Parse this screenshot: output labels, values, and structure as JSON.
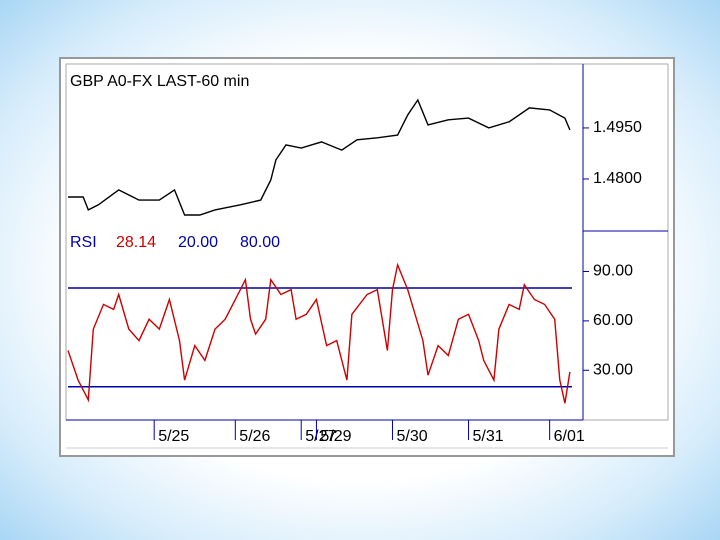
{
  "chart_data": [
    {
      "type": "line",
      "title": "GBP A0-FX LAST-60 min",
      "x": [
        0,
        3,
        4,
        6,
        10,
        14,
        18,
        21,
        23,
        26,
        29,
        34,
        38,
        40,
        41,
        43,
        46,
        50,
        54,
        57,
        61,
        65,
        67,
        69,
        71,
        75,
        79,
        83,
        87,
        91,
        95,
        98,
        99
      ],
      "series": [
        {
          "color": "#000000",
          "values": [
            1.4747,
            1.4747,
            1.4709,
            1.4724,
            1.4768,
            1.4738,
            1.4738,
            1.4768,
            1.4694,
            1.4694,
            1.4709,
            1.4724,
            1.4738,
            1.4797,
            1.4856,
            1.49,
            1.4891,
            1.4909,
            1.4885,
            1.4915,
            1.4921,
            1.4929,
            1.4988,
            1.5032,
            1.4959,
            1.4974,
            1.4979,
            1.495,
            1.4968,
            1.5009,
            1.5003,
            1.4979,
            1.4944
          ]
        }
      ],
      "xlim": [
        0,
        100
      ],
      "ylim": [
        1.465,
        1.5135
      ],
      "yticks": [
        {
          "value": 1.48,
          "label": "1.4800"
        },
        {
          "value": 1.495,
          "label": "1.4950"
        }
      ]
    },
    {
      "type": "line",
      "title": "RSI",
      "current_value": 28.14,
      "levels": [
        {
          "value": 20,
          "label": "20.00"
        },
        {
          "value": 80,
          "label": "80.00"
        }
      ],
      "level_color": "#0000aa",
      "x": [
        0,
        2,
        4,
        5,
        7,
        9,
        10,
        12,
        14,
        16,
        18,
        20,
        22,
        23,
        25,
        27,
        29,
        31,
        34,
        35,
        36,
        37,
        39,
        40,
        42,
        44,
        45,
        47,
        49,
        51,
        53,
        55,
        56,
        59,
        61,
        63,
        64,
        65,
        67,
        70,
        71,
        73,
        75,
        77,
        79,
        81,
        82,
        84,
        85,
        87,
        89,
        90,
        92,
        94,
        96,
        97,
        98,
        99
      ],
      "series": [
        {
          "color": "#cc0000",
          "values": [
            42,
            24,
            12,
            55,
            70,
            67,
            76,
            55,
            48,
            61,
            55,
            73,
            48,
            24,
            45,
            36,
            55,
            61,
            79,
            85,
            61,
            52,
            61,
            85,
            76,
            79,
            61,
            64,
            73,
            45,
            48,
            24,
            64,
            76,
            79,
            42,
            79,
            94,
            79,
            48,
            27,
            45,
            39,
            61,
            64,
            48,
            36,
            24,
            55,
            70,
            67,
            82,
            73,
            70,
            61,
            24,
            10,
            29
          ]
        }
      ],
      "xlim": [
        0,
        100
      ],
      "ylim": [
        1,
        114
      ],
      "yticks": [
        {
          "value": 30,
          "label": "30.00"
        },
        {
          "value": 60,
          "label": "60.00"
        },
        {
          "value": 90,
          "label": "90.00"
        }
      ],
      "xticks": [
        {
          "value": 17,
          "label": "5/25"
        },
        {
          "value": 33,
          "label": "5/26"
        },
        {
          "value": 46,
          "label": "5/27"
        },
        {
          "value": 49,
          "label": "5/29"
        },
        {
          "value": 64,
          "label": "5/30"
        },
        {
          "value": 79,
          "label": "5/31"
        },
        {
          "value": 95,
          "label": "6/01"
        }
      ]
    }
  ]
}
